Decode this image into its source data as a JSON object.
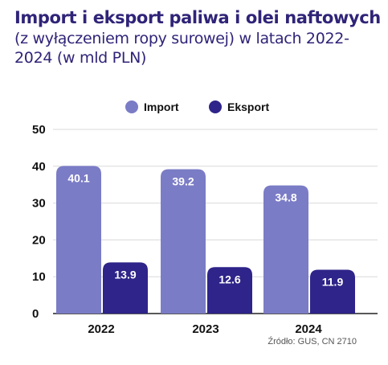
{
  "title": "Import i eksport paliwa i olei naftowych",
  "subtitle": "(z wyłączeniem ropy surowej) w latach 2022-2024 (w mld PLN)",
  "source": "Źródło: GUS, CN 2710",
  "colors": {
    "import": "#7b7cc6",
    "eksport": "#2e2489",
    "text": "#2f2478",
    "grid": "#d9d9d9"
  },
  "chart_data": {
    "type": "bar",
    "categories": [
      "2022",
      "2023",
      "2024"
    ],
    "series": [
      {
        "name": "Import",
        "values": [
          40.1,
          39.2,
          34.8
        ]
      },
      {
        "name": "Eksport",
        "values": [
          13.9,
          12.6,
          11.9
        ]
      }
    ],
    "ylim": [
      0,
      50
    ],
    "yticks": [
      0,
      10,
      20,
      30,
      40,
      50
    ],
    "legend": "top-center",
    "grid": true
  }
}
